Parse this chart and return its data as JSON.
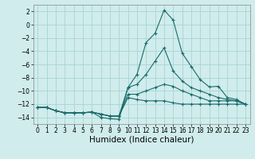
{
  "xlabel": "Humidex (Indice chaleur)",
  "x_values": [
    0,
    1,
    2,
    3,
    4,
    5,
    6,
    7,
    8,
    9,
    10,
    11,
    12,
    13,
    14,
    15,
    16,
    17,
    18,
    19,
    20,
    21,
    22,
    23
  ],
  "curves": [
    [
      -12.5,
      -12.5,
      -13.0,
      -13.3,
      -13.3,
      -13.3,
      -13.2,
      -14.0,
      -14.2,
      -14.3,
      -9.5,
      -7.5,
      -2.7,
      -1.3,
      2.2,
      0.7,
      -4.3,
      -6.3,
      -8.3,
      -9.4,
      -9.3,
      -11.0,
      -11.3,
      -12.0
    ],
    [
      -12.5,
      -12.5,
      -13.0,
      -13.3,
      -13.3,
      -13.3,
      -13.2,
      -13.5,
      -13.8,
      -13.8,
      -9.5,
      -9.0,
      -7.5,
      -5.5,
      -3.5,
      -7.0,
      -8.5,
      -9.5,
      -10.0,
      -10.5,
      -11.0,
      -11.3,
      -11.5,
      -12.0
    ],
    [
      -12.5,
      -12.5,
      -13.0,
      -13.3,
      -13.3,
      -13.3,
      -13.2,
      -13.5,
      -13.8,
      -13.8,
      -10.5,
      -10.5,
      -10.0,
      -9.5,
      -9.0,
      -9.3,
      -10.0,
      -10.5,
      -11.0,
      -11.5,
      -11.5,
      -11.5,
      -11.5,
      -12.0
    ],
    [
      -12.5,
      -12.5,
      -13.0,
      -13.3,
      -13.3,
      -13.3,
      -13.2,
      -13.5,
      -13.8,
      -13.8,
      -11.0,
      -11.3,
      -11.5,
      -11.5,
      -11.5,
      -11.8,
      -12.0,
      -12.0,
      -12.0,
      -12.0,
      -12.0,
      -12.0,
      -12.0,
      -12.0
    ]
  ],
  "line_color": "#1a6b6b",
  "marker": "+",
  "markersize": 3,
  "bg_color": "#d0ecec",
  "grid_color": "#a8d4d4",
  "ylim": [
    -15,
    3
  ],
  "yticks": [
    2,
    0,
    -2,
    -4,
    -6,
    -8,
    -10,
    -12,
    -14
  ],
  "xlim": [
    -0.5,
    23.5
  ],
  "xticks": [
    0,
    1,
    2,
    3,
    4,
    5,
    6,
    7,
    8,
    9,
    10,
    11,
    12,
    13,
    14,
    15,
    16,
    17,
    18,
    19,
    20,
    21,
    22,
    23
  ],
  "tick_fontsize": 5.5,
  "xlabel_fontsize": 7.5
}
